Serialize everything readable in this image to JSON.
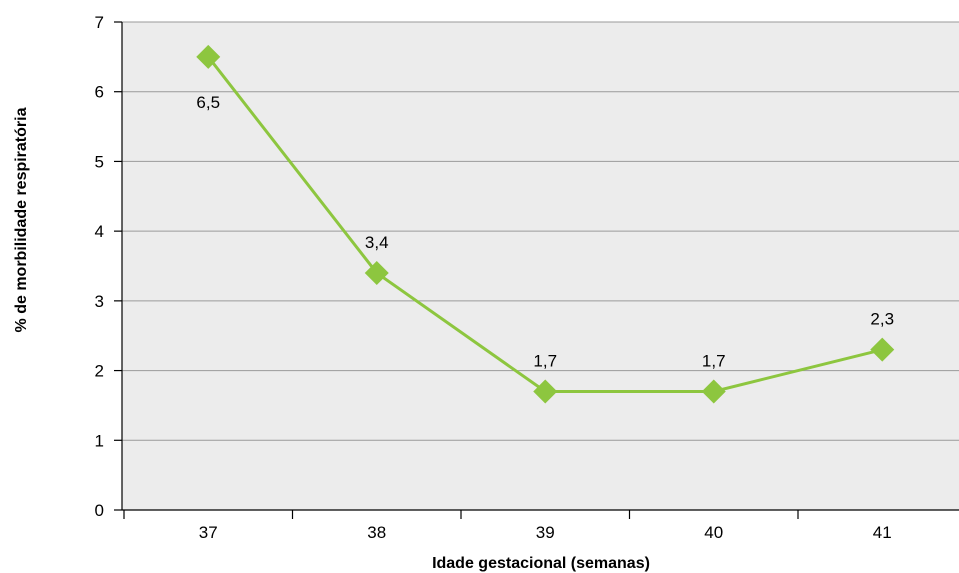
{
  "chart_data": {
    "type": "line",
    "title": "",
    "xlabel": "Idade gestacional (semanas)",
    "ylabel": "% de morbilidade respiratória",
    "categories": [
      "37",
      "38",
      "39",
      "40",
      "41"
    ],
    "series": [
      {
        "values": [
          6.5,
          3.4,
          1.7,
          1.7,
          2.3
        ],
        "labels": [
          "6,5",
          "3,4",
          "1,7",
          "1,7",
          "2,3"
        ],
        "color": "#8dc63f",
        "marker": "diamond"
      }
    ],
    "ylim": [
      0,
      7
    ],
    "yticks": [
      "0",
      "1",
      "2",
      "3",
      "4",
      "5",
      "6",
      "7"
    ],
    "grid": true,
    "plot_background": "#ececec",
    "gridline_color": "#9a9a9a",
    "legend": "none"
  }
}
